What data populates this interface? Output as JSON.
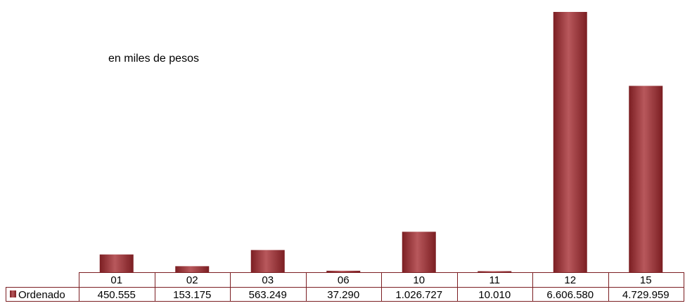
{
  "chart_data": {
    "type": "bar",
    "subtitle": "en miles de pesos",
    "categories": [
      "01",
      "02",
      "03",
      "06",
      "10",
      "11",
      "12",
      "15"
    ],
    "series": [
      {
        "name": "Ordenado",
        "values": [
          450555,
          153175,
          563249,
          37290,
          1026727,
          10010,
          6606580,
          4729959
        ],
        "labels": [
          "450.555",
          "153.175",
          "563.249",
          "37.290",
          "1.026.727",
          "10.010",
          "6.606.580",
          "4.729.959"
        ]
      }
    ],
    "ylim": [
      0,
      6606580
    ],
    "grid": false,
    "legend": "data-table-left",
    "colors": {
      "bar": "#7b1e22",
      "bar_highlight": "#b8585c",
      "table_border": "#7b1e22"
    }
  }
}
